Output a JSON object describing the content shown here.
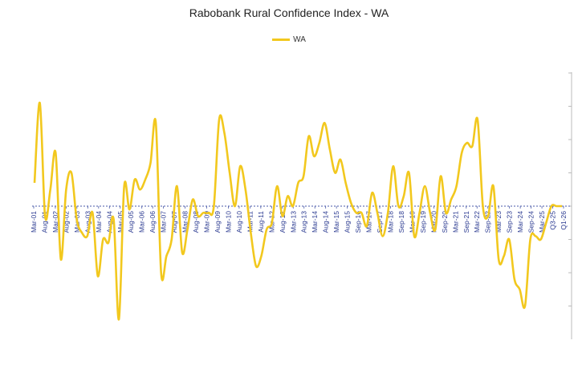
{
  "chart_data": {
    "type": "line",
    "title": "Rabobank Rural Confidence Index - WA",
    "xlabel": "",
    "ylabel": "",
    "legend": "top",
    "grid": false,
    "line_color": "#f2c81e",
    "axis_color": "#4a5aa8",
    "tick_color": "#2a3990",
    "ylim": [
      -40,
      40
    ],
    "tick_labels": [
      "Mar-01",
      "Aug-01",
      "Mar-02",
      "Aug-02",
      "Mar-03",
      "Aug-03",
      "Mar-04",
      "Aug-04",
      "Mar-05",
      "Aug-05",
      "Mar-06",
      "Aug-06",
      "Mar-07",
      "Aug-07",
      "Mar-08",
      "Aug-08",
      "Mar-09",
      "Aug-09",
      "Mar-10",
      "Aug-10",
      "Mar-11",
      "Aug-11",
      "Mar-12",
      "Aug-12",
      "Mar-13",
      "Aug-13",
      "Mar-14",
      "Aug-14",
      "Mar-15",
      "Aug-15",
      "Sep-16",
      "Mar-17",
      "Sep-17",
      "Mar-18",
      "Sep-18",
      "Mar-19",
      "Sep-19",
      "Mar-20",
      "Sep-20",
      "Mar-21",
      "Sep-21",
      "Mar-22",
      "Sep-22",
      "Mar-23",
      "Sep-23",
      "Mar-24",
      "Sep-24",
      "Mar-25",
      "Q3-25",
      "Q1-26"
    ],
    "series": [
      {
        "name": "WA",
        "values": [
          7,
          31,
          -3,
          5,
          16,
          -16,
          5,
          10,
          -4,
          -8,
          -9,
          -2,
          -21,
          -10,
          -11,
          -4,
          -34,
          6,
          -1,
          8,
          5,
          8,
          13,
          25,
          -20,
          -15,
          -10,
          6,
          -14,
          -7,
          2,
          -3,
          -2,
          -2,
          0,
          26,
          22,
          10,
          0,
          12,
          5,
          -8,
          -18,
          -15,
          -7,
          -5,
          6,
          -3,
          3,
          0,
          7,
          9,
          21,
          15,
          19,
          25,
          17,
          10,
          14,
          7,
          1,
          -2,
          -2,
          -6,
          4,
          -2,
          -9,
          -2,
          12,
          0,
          3,
          10,
          -9,
          -2,
          6,
          -2,
          -7,
          9,
          -2,
          2,
          6,
          16,
          19,
          18,
          26,
          0,
          -3,
          6,
          -16,
          -15,
          -10,
          -22,
          -25,
          -30,
          -10,
          -9,
          -10,
          -5,
          0,
          0,
          0
        ],
        "x_note": ""
      }
    ]
  }
}
